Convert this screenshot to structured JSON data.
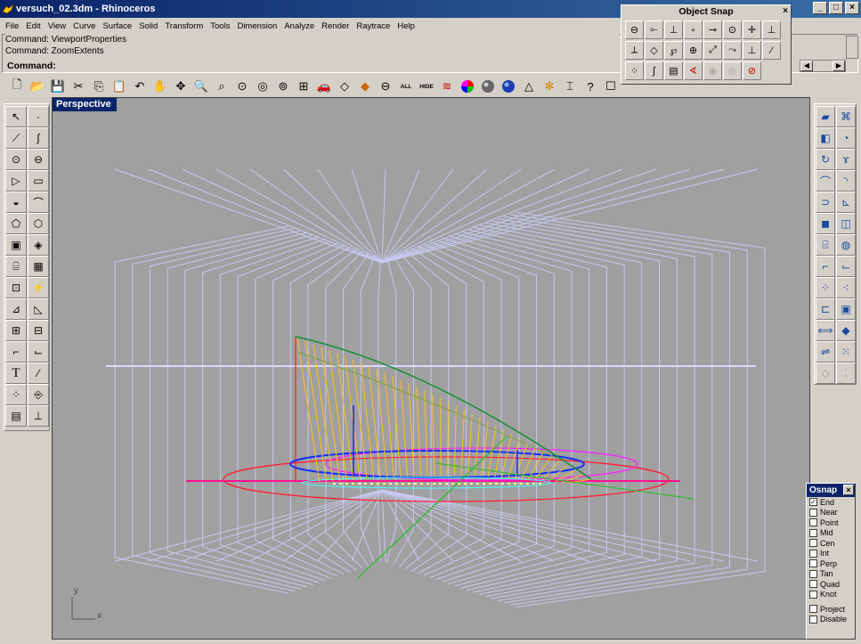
{
  "window": {
    "title": "versuch_02.3dm - Rhinoceros",
    "minimize": "_",
    "maximize": "□",
    "close": "×"
  },
  "menu": [
    "File",
    "Edit",
    "View",
    "Curve",
    "Surface",
    "Solid",
    "Transform",
    "Tools",
    "Dimension",
    "Analyze",
    "Render",
    "Raytrace",
    "Help"
  ],
  "command_history": [
    "Command: ViewportProperties",
    "Command: ZoomExtents"
  ],
  "command_prompt": "Command:",
  "toolbar_text_buttons": {
    "all": "ALL",
    "hide": "HIDE"
  },
  "viewport": {
    "tab": "Perspective",
    "axis_y": "y",
    "axis_x": "x"
  },
  "object_snap_window": {
    "title": "Object Snap",
    "close": "×"
  },
  "osnap_panel": {
    "title": "Osnap",
    "close": "×",
    "items": [
      {
        "label": "End",
        "checked": true
      },
      {
        "label": "Near",
        "checked": false
      },
      {
        "label": "Point",
        "checked": false
      },
      {
        "label": "Mid",
        "checked": false
      },
      {
        "label": "Cen",
        "checked": false
      },
      {
        "label": "Int",
        "checked": false
      },
      {
        "label": "Perp",
        "checked": false
      },
      {
        "label": "Tan",
        "checked": false
      },
      {
        "label": "Quad",
        "checked": false
      },
      {
        "label": "Knot",
        "checked": false
      }
    ],
    "extra": [
      {
        "label": "Project",
        "checked": false
      },
      {
        "label": "Disable",
        "checked": false
      }
    ]
  },
  "colors": {
    "grid_lines": "#c8c8f0",
    "viewport_bg": "#a0a0a0",
    "title_bar": "#0a246a"
  }
}
